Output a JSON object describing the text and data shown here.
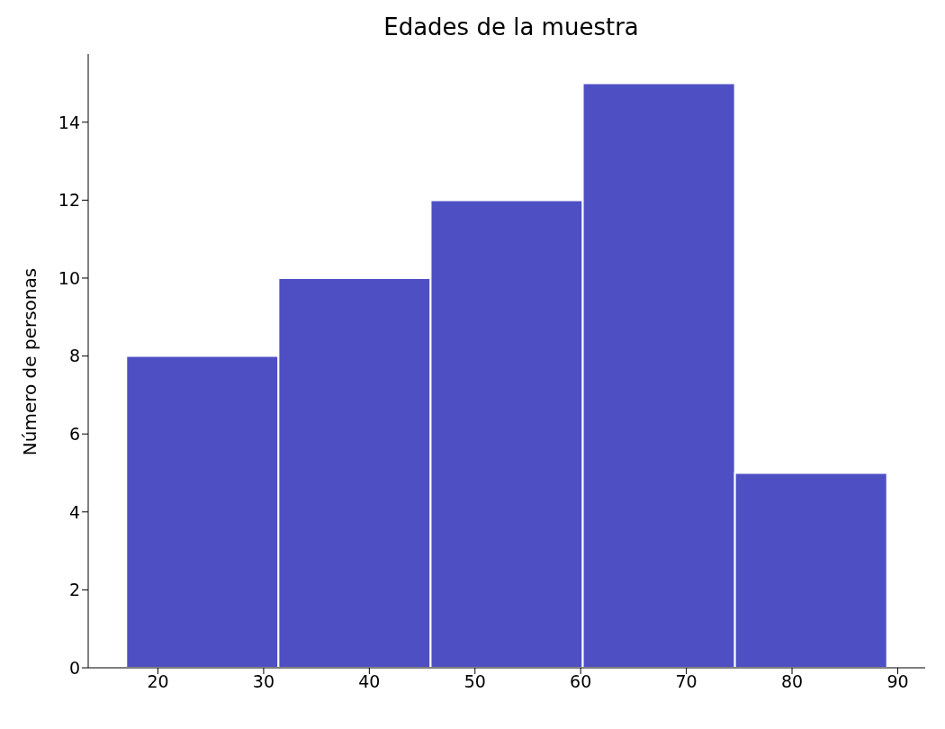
{
  "chart_data": {
    "type": "histogram",
    "title": "Edades de la muestra",
    "ylabel": "Número de personas",
    "bins": [
      17,
      31.4,
      45.8,
      60.2,
      74.6,
      89
    ],
    "values": [
      8,
      10,
      12,
      15,
      5
    ],
    "color": "#4f4fc4",
    "xlim": [
      13.4,
      92.6
    ],
    "xticks": [
      20,
      30,
      40,
      50,
      60,
      70,
      80,
      90
    ],
    "ylim": [
      0,
      15.75
    ],
    "yticks": [
      0,
      2,
      4,
      6,
      8,
      10,
      12,
      14
    ],
    "grid": false
  }
}
